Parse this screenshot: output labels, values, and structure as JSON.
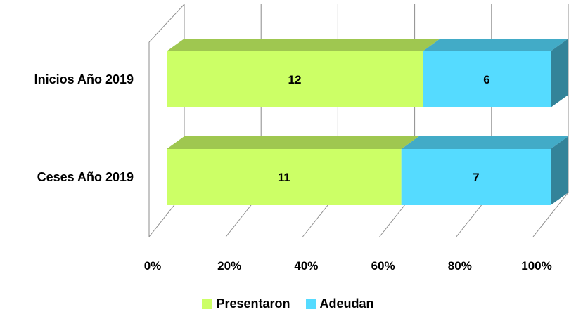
{
  "chart_data": {
    "type": "bar",
    "orientation": "horizontal",
    "stacking": "percent",
    "three_d": true,
    "categories": [
      "Inicios Año 2019",
      "Ceses Año 2019"
    ],
    "series": [
      {
        "name": "Presentaron",
        "values": [
          12,
          11
        ],
        "color": "#ccff66"
      },
      {
        "name": "Adeudan",
        "values": [
          6,
          7
        ],
        "color": "#55dbff"
      }
    ],
    "x_ticks": [
      "0%",
      "20%",
      "40%",
      "60%",
      "80%",
      "100%"
    ],
    "xlim": [
      0,
      100
    ],
    "grid": true,
    "legend_position": "bottom"
  }
}
